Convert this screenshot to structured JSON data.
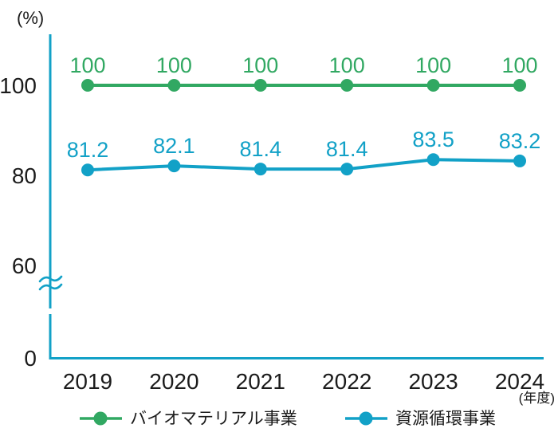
{
  "chart_data": {
    "type": "line",
    "title": "",
    "y_unit": "(%)",
    "x_unit": "(年度)",
    "categories": [
      "2019",
      "2020",
      "2021",
      "2022",
      "2023",
      "2024"
    ],
    "series": [
      {
        "id": "biomaterial",
        "name": "バイオマテリアル事業",
        "color": "#31a862",
        "values": [
          100,
          100,
          100,
          100,
          100,
          100
        ]
      },
      {
        "id": "resource-recycling",
        "name": "資源循環事業",
        "color": "#12a1c7",
        "values": [
          81.2,
          82.1,
          81.4,
          81.4,
          83.5,
          83.2
        ]
      }
    ],
    "y_ticks": [
      100,
      80,
      60,
      0
    ],
    "axis_break_between": [
      0,
      60
    ],
    "ylim": [
      0,
      110
    ],
    "grid": false,
    "legend_position": "bottom",
    "axis_color": "#12a1c7",
    "text_color": "#1b1b1b"
  }
}
